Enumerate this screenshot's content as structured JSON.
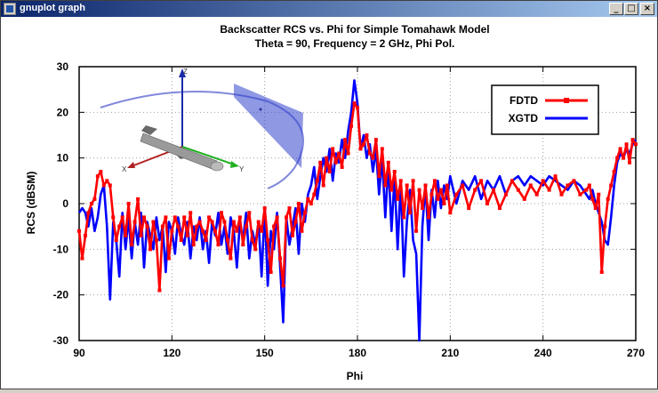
{
  "window": {
    "title": "gnuplot graph",
    "buttons": {
      "minimize": "_",
      "maximize": "□",
      "close": "×"
    }
  },
  "colors": {
    "fdtd": "#ff0000",
    "xgtd": "#0000ff",
    "grid": "#a0a0a0"
  },
  "chart_data": {
    "type": "line",
    "title": "Backscatter RCS vs. Phi for Simple Tomahawk Model",
    "subtitle": "Theta = 90, Frequency = 2 GHz, Phi Pol.",
    "xlabel": "Phi",
    "ylabel": "RCS (dBSM)",
    "xlim": [
      90,
      270
    ],
    "ylim": [
      -30,
      30
    ],
    "xticks": [
      90,
      120,
      150,
      180,
      210,
      240,
      270
    ],
    "yticks": [
      -30,
      -20,
      -10,
      0,
      10,
      20,
      30
    ],
    "grid": true,
    "legend_position": "top-right",
    "inset": {
      "description": "missile model with axes",
      "axis_labels": [
        "Z",
        "X",
        "Y"
      ]
    },
    "series": [
      {
        "name": "FDTD",
        "x": [
          90,
          91,
          92,
          93,
          94,
          95,
          96,
          97,
          98,
          99,
          100,
          101,
          102,
          103,
          104,
          105,
          106,
          107,
          108,
          109,
          110,
          111,
          112,
          113,
          114,
          115,
          116,
          117,
          118,
          119,
          120,
          121,
          122,
          123,
          124,
          125,
          126,
          127,
          128,
          129,
          130,
          131,
          132,
          133,
          134,
          135,
          136,
          137,
          138,
          139,
          140,
          141,
          142,
          143,
          144,
          145,
          146,
          147,
          148,
          149,
          150,
          151,
          152,
          153,
          154,
          155,
          156,
          157,
          158,
          159,
          160,
          161,
          162,
          163,
          164,
          165,
          166,
          167,
          168,
          169,
          170,
          171,
          172,
          173,
          174,
          175,
          176,
          177,
          178,
          179,
          180,
          181,
          182,
          183,
          184,
          185,
          186,
          187,
          188,
          189,
          190,
          191,
          192,
          193,
          194,
          195,
          196,
          197,
          198,
          199,
          200,
          201,
          202,
          203,
          204,
          205,
          206,
          207,
          208,
          209,
          210,
          212,
          214,
          216,
          218,
          220,
          222,
          224,
          226,
          228,
          230,
          232,
          234,
          236,
          238,
          240,
          242,
          244,
          246,
          248,
          250,
          252,
          254,
          255,
          256,
          257,
          258,
          259,
          260,
          261,
          262,
          263,
          264,
          265,
          266,
          267,
          268,
          269,
          270
        ],
        "values": [
          -6,
          -12,
          -7,
          -2,
          0,
          1,
          6,
          7,
          4,
          5,
          4,
          -3,
          -8,
          -5,
          -3,
          -7,
          0,
          -9,
          -4,
          1,
          -7,
          -3,
          -5,
          -10,
          -4,
          -8,
          -19,
          -5,
          -3,
          -12,
          -6,
          -3,
          -5,
          -8,
          -3,
          -7,
          -2,
          -9,
          -5,
          -4,
          -6,
          -8,
          -3,
          -4,
          -6,
          -9,
          -2,
          -4,
          -8,
          -12,
          -4,
          -6,
          -3,
          -9,
          -5,
          -2,
          -8,
          -10,
          -4,
          -6,
          -1,
          -8,
          -15,
          -5,
          -3,
          -12,
          -18,
          -3,
          -1,
          -7,
          -4,
          0,
          -6,
          -2,
          1,
          0,
          2,
          5,
          9,
          4,
          10,
          7,
          12,
          9,
          11,
          8,
          14,
          11,
          17,
          22,
          21,
          12,
          13,
          15,
          11,
          10,
          14,
          6,
          12,
          4,
          9,
          3,
          7,
          1,
          5,
          -3,
          4,
          -2,
          5,
          -6,
          3,
          -1,
          4,
          -3,
          2,
          5,
          1,
          3,
          0,
          4,
          -2,
          2,
          4,
          -1,
          3,
          5,
          0,
          3,
          -1,
          2,
          5,
          3,
          1,
          4,
          2,
          5,
          3,
          6,
          2,
          4,
          5,
          2,
          3,
          4,
          1,
          -1,
          2,
          -15,
          -5,
          1,
          4,
          7,
          10,
          12,
          10,
          13,
          9,
          14,
          13
        ]
      },
      {
        "name": "XGTD",
        "x": [
          90,
          91,
          92,
          93,
          94,
          95,
          96,
          97,
          98,
          99,
          100,
          101,
          102,
          103,
          104,
          105,
          106,
          107,
          108,
          109,
          110,
          111,
          112,
          113,
          114,
          115,
          116,
          117,
          118,
          119,
          120,
          121,
          122,
          123,
          124,
          125,
          126,
          127,
          128,
          129,
          130,
          131,
          132,
          133,
          134,
          135,
          136,
          137,
          138,
          139,
          140,
          141,
          142,
          143,
          144,
          145,
          146,
          147,
          148,
          149,
          150,
          151,
          152,
          153,
          154,
          155,
          156,
          157,
          158,
          159,
          160,
          161,
          162,
          163,
          164,
          165,
          166,
          167,
          168,
          169,
          170,
          171,
          172,
          173,
          174,
          175,
          176,
          177,
          178,
          179,
          180,
          181,
          182,
          183,
          184,
          185,
          186,
          187,
          188,
          189,
          190,
          191,
          192,
          193,
          194,
          195,
          196,
          197,
          198,
          199,
          200,
          201,
          202,
          203,
          204,
          205,
          206,
          207,
          208,
          209,
          210,
          212,
          214,
          216,
          218,
          220,
          222,
          224,
          226,
          228,
          230,
          232,
          234,
          236,
          238,
          240,
          242,
          244,
          246,
          248,
          250,
          252,
          254,
          255,
          256,
          257,
          258,
          259,
          260,
          261,
          262,
          263,
          264,
          265,
          266,
          267,
          268,
          269,
          270
        ],
        "values": [
          -2,
          -1,
          -2,
          -5,
          -1,
          -6,
          -3,
          2,
          4,
          -5,
          -21,
          -4,
          -8,
          -16,
          -2,
          -10,
          -3,
          -12,
          -4,
          -9,
          -2,
          -14,
          -4,
          -7,
          -10,
          -3,
          -8,
          -5,
          -15,
          -4,
          -6,
          -11,
          -3,
          -7,
          -9,
          -4,
          -12,
          -5,
          -8,
          -3,
          -10,
          -6,
          -13,
          -4,
          -7,
          -2,
          -9,
          -5,
          -11,
          -3,
          -6,
          -14,
          -4,
          -8,
          -2,
          -12,
          -6,
          -9,
          -4,
          -16,
          -1,
          -18,
          -6,
          -10,
          -2,
          -14,
          -26,
          -3,
          -9,
          -5,
          -1,
          -11,
          0,
          -4,
          2,
          4,
          8,
          1,
          6,
          10,
          7,
          12,
          5,
          11,
          9,
          14,
          10,
          16,
          20,
          27,
          22,
          12,
          15,
          10,
          13,
          7,
          12,
          2,
          10,
          -3,
          9,
          -6,
          6,
          -10,
          5,
          -16,
          -4,
          3,
          -8,
          -11,
          -30,
          -5,
          4,
          -8,
          3,
          -3,
          5,
          -1,
          4,
          1,
          6,
          0,
          5,
          3,
          6,
          1,
          5,
          3,
          6,
          2,
          5,
          6,
          4,
          6,
          5,
          4,
          6,
          5,
          4,
          3,
          5,
          4,
          2,
          1,
          3,
          0,
          -2,
          -4,
          -8,
          -9,
          -3,
          4,
          9,
          11,
          10,
          12,
          11,
          13,
          14
        ]
      }
    ]
  }
}
